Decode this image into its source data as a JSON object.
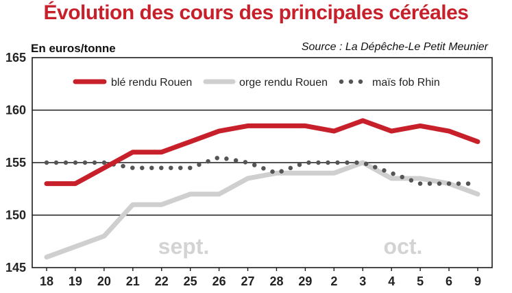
{
  "title": "Évolution des cours des principales céréales",
  "chart_data": {
    "type": "line",
    "title": "Évolution des cours des principales céréales",
    "unit_label": "En euros/tonne",
    "source": "Source : La Dépêche-Le Petit Meunier",
    "categories": [
      "18",
      "19",
      "20",
      "21",
      "22",
      "25",
      "26",
      "27",
      "28",
      "29",
      "2",
      "3",
      "4",
      "5",
      "6",
      "9"
    ],
    "month_labels": [
      "sept.",
      "oct."
    ],
    "ylim": [
      145,
      165
    ],
    "yticks": [
      145,
      150,
      155,
      160,
      165
    ],
    "grid": true,
    "legend_position": "top",
    "series": [
      {
        "name": "blé rendu Rouen",
        "style": "solid-thick",
        "color": "#c8202a",
        "values": [
          153,
          153,
          154.5,
          156,
          156,
          157,
          158,
          158.5,
          158.5,
          158.5,
          158,
          159,
          158,
          158.5,
          158,
          157
        ]
      },
      {
        "name": "orge rendu Rouen",
        "style": "solid-thick",
        "color": "#cfcfcf",
        "values": [
          146,
          147,
          148,
          151,
          151,
          152,
          152,
          153.5,
          154,
          154,
          154,
          155,
          153.5,
          153.5,
          153,
          152
        ]
      },
      {
        "name": "maïs fob Rhin",
        "style": "dotted",
        "color": "#555555",
        "values": [
          155,
          155,
          155,
          154.5,
          154.5,
          154.5,
          155.5,
          155,
          154,
          155,
          155,
          155,
          154,
          153,
          153,
          153
        ]
      }
    ]
  }
}
